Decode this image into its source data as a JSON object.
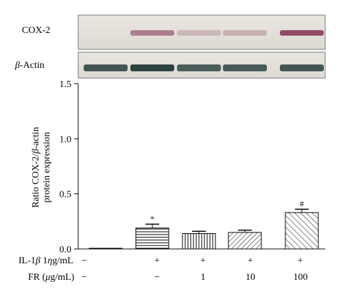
{
  "blots": [
    {
      "label_main": "COX-2",
      "label_prefix": "",
      "band_color": "#8a3a5a",
      "intensities": [
        0.0,
        0.55,
        0.12,
        0.18,
        0.95
      ]
    },
    {
      "label_main": "-Actin",
      "label_prefix": "β",
      "band_color": "#233a3a",
      "intensities": [
        0.85,
        1.0,
        0.8,
        0.82,
        0.85
      ]
    }
  ],
  "conditions": {
    "rows": [
      {
        "label_pre": "IL-1",
        "label_greek": "β",
        "label_mid": " 1",
        "label_greek2": "η",
        "label_post": "g/mL",
        "values": [
          "−",
          "+",
          "+",
          "+",
          "+"
        ]
      },
      {
        "label_pre": "FR (",
        "label_greek": "μ",
        "label_mid": "g/mL)",
        "label_greek2": "",
        "label_post": "",
        "values": [
          "−",
          "−",
          "1",
          "10",
          "100"
        ]
      }
    ]
  },
  "chart_data": {
    "type": "bar",
    "ylabel_line1_pre": "Ratio COX-2/",
    "ylabel_line1_greek": "β",
    "ylabel_line1_post": "-actin",
    "ylabel_line2": "protein expression",
    "ylim": [
      0,
      1.5
    ],
    "yticks": [
      "0.0",
      "0.5",
      "1.0",
      "1.5"
    ],
    "categories": [
      "1",
      "2",
      "3",
      "4",
      "5"
    ],
    "values": [
      0.0,
      0.19,
      0.14,
      0.15,
      0.33
    ],
    "errors": [
      0.0,
      0.035,
      0.02,
      0.02,
      0.03
    ],
    "patterns": [
      "none",
      "horizontal",
      "vertical",
      "diagonal-right",
      "diagonal-left"
    ],
    "annotations": [
      "",
      "*",
      "",
      "",
      "#"
    ],
    "grid": false
  }
}
